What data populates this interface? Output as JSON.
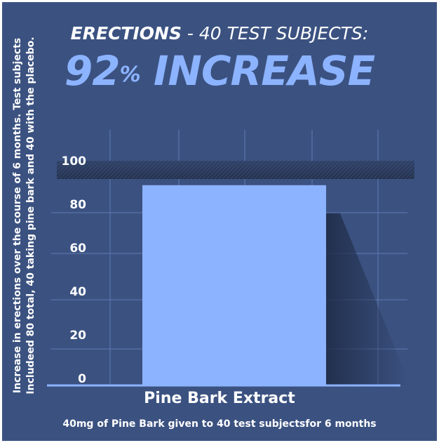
{
  "title": {
    "bold": "ERECTIONS",
    "rest": " - 40 TEST SUBJECTS:",
    "headline_number": "92",
    "headline_pct": "%",
    "headline_word": " INCREASE"
  },
  "footnote": "40mg of Pine Bark given to 40 test subjectsfor 6 months",
  "colors": {
    "background": "#3b5281",
    "bar": "#8cb3ff",
    "headline": "#8cb3ff",
    "grid": "#5d77b0"
  },
  "chart_data": {
    "type": "bar",
    "categories": [
      "Pine Bark Extract"
    ],
    "values": [
      92
    ],
    "ylabel": "Increase in erections over the course of 6 months. Test subjects Includeed 80 total, 40 taking pine bark and 40 with the placebo.",
    "xlabel": "",
    "ylim": [
      0,
      100
    ],
    "yticks": [
      "0",
      "20",
      "40",
      "60",
      "80",
      "100"
    ],
    "grid": true
  }
}
